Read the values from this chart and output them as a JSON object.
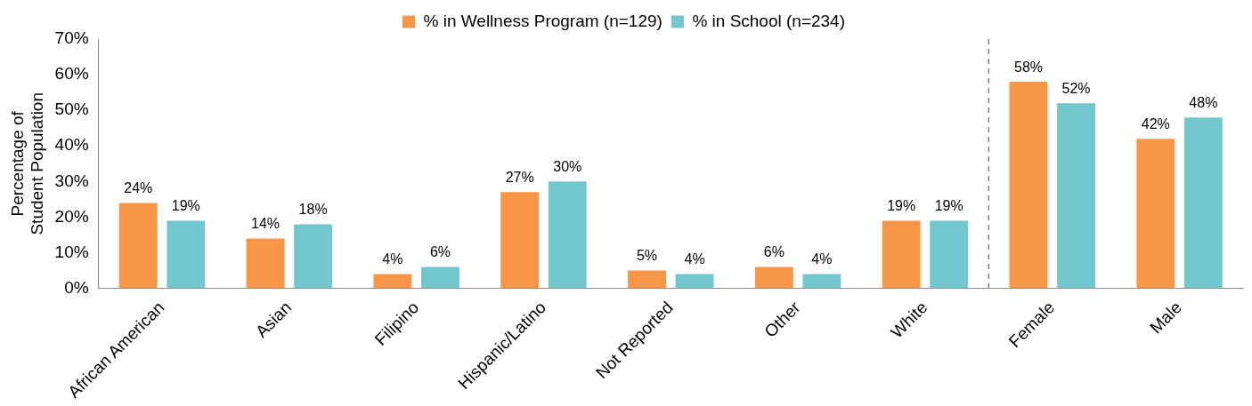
{
  "chart_data": {
    "type": "bar",
    "ylabel": "Percentage of\nStudent Population",
    "categories": [
      "African American",
      "Asian",
      "Filipino",
      "Hispanic/Latino",
      "Not Reported",
      "Other",
      "White",
      "Female",
      "Male"
    ],
    "series": [
      {
        "name": "% in Wellness Program (n=129)",
        "color": "#f79646",
        "values": [
          24,
          14,
          4,
          27,
          5,
          6,
          19,
          58,
          42
        ],
        "value_labels": [
          "24%",
          "14%",
          "4%",
          "27%",
          "5%",
          "6%",
          "19%",
          "58%",
          "42%"
        ]
      },
      {
        "name": "% in School (n=234)",
        "color": "#72c6ce",
        "values": [
          19,
          18,
          6,
          30,
          4,
          4,
          19,
          52,
          48
        ],
        "value_labels": [
          "19%",
          "18%",
          "6%",
          "30%",
          "4%",
          "4%",
          "19%",
          "52%",
          "48%"
        ]
      }
    ],
    "ylim": [
      0,
      70
    ],
    "yticks": [
      {
        "value": 0,
        "label": "0%"
      },
      {
        "value": 10,
        "label": "10%"
      },
      {
        "value": 20,
        "label": "20%"
      },
      {
        "value": 30,
        "label": "30%"
      },
      {
        "value": 40,
        "label": "40%"
      },
      {
        "value": 50,
        "label": "50%"
      },
      {
        "value": 60,
        "label": "60%"
      },
      {
        "value": 70,
        "label": "70%"
      }
    ],
    "grid": false,
    "legend": "top"
  }
}
